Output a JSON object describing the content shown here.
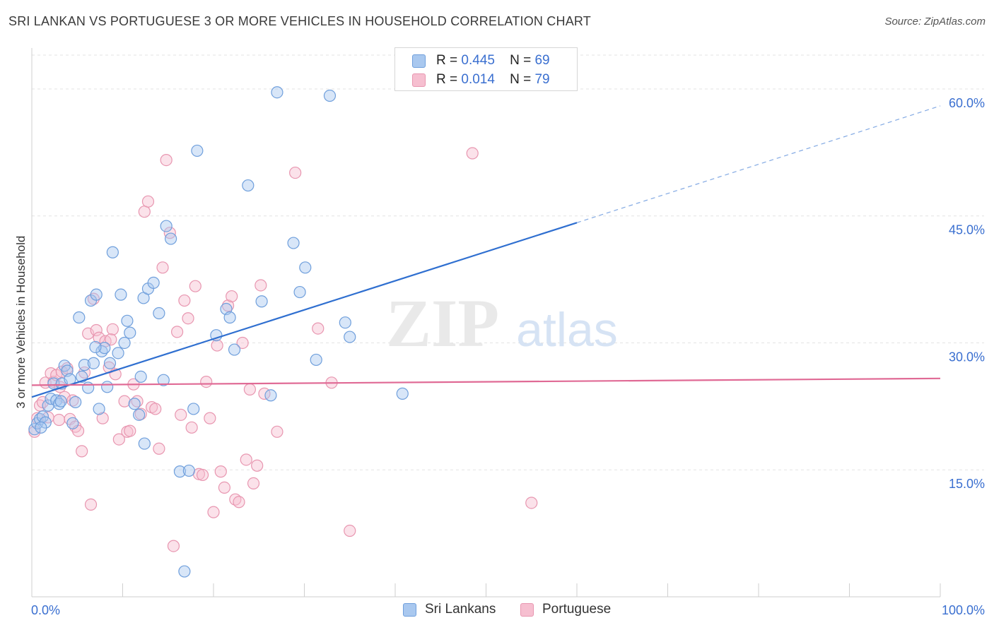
{
  "title": "SRI LANKAN VS PORTUGUESE 3 OR MORE VEHICLES IN HOUSEHOLD CORRELATION CHART",
  "source": "Source: ZipAtlas.com",
  "watermark": {
    "zip": "ZIP",
    "atlas": "atlas"
  },
  "legend": {
    "rows": [
      {
        "r_label": "R =",
        "r_value": "0.445",
        "n_label": "N =",
        "n_value": "69"
      },
      {
        "r_label": "R =",
        "r_value": "0.014",
        "n_label": "N =",
        "n_value": "79"
      }
    ]
  },
  "bottom_legend": {
    "series1": "Sri Lankans",
    "series2": "Portuguese"
  },
  "colors": {
    "blue_fill": "#a9c8ef",
    "blue_stroke": "#6f9fdc",
    "blue_line": "#2f6fd0",
    "pink_fill": "#f6bfd0",
    "pink_stroke": "#e896b0",
    "pink_line": "#e06a95",
    "axis_text": "#3a6fd0",
    "grid": "#e3e3e3"
  },
  "chart_data": {
    "type": "scatter",
    "title": "SRI LANKAN VS PORTUGUESE 3 OR MORE VEHICLES IN HOUSEHOLD CORRELATION CHART",
    "xlabel": "",
    "ylabel": "3 or more Vehicles in Household",
    "xlim": [
      0,
      100
    ],
    "ylim": [
      0,
      64
    ],
    "x_tick_labels": [
      "0.0%",
      "100.0%"
    ],
    "y_ticks": [
      15,
      30,
      45,
      60
    ],
    "y_tick_labels": [
      "15.0%",
      "30.0%",
      "45.0%",
      "60.0%"
    ],
    "grid": true,
    "legend_position": "top-center",
    "series": [
      {
        "name": "Sri Lankans",
        "R": 0.445,
        "N": 69,
        "trend": {
          "x": [
            0,
            60
          ],
          "y": [
            23.6,
            44.2
          ],
          "dashed_extension_to": [
            100,
            58.0
          ]
        },
        "points": [
          [
            0.3,
            19.8
          ],
          [
            0.6,
            20.5
          ],
          [
            0.9,
            21.0
          ],
          [
            1.2,
            21.3
          ],
          [
            1.5,
            20.6
          ],
          [
            1.8,
            22.6
          ],
          [
            2.1,
            23.4
          ],
          [
            2.4,
            25.2
          ],
          [
            2.7,
            23.2
          ],
          [
            3.0,
            22.8
          ],
          [
            3.3,
            25.2
          ],
          [
            3.6,
            27.3
          ],
          [
            3.9,
            26.7
          ],
          [
            4.2,
            25.7
          ],
          [
            4.5,
            20.5
          ],
          [
            4.8,
            23.0
          ],
          [
            5.2,
            33.0
          ],
          [
            5.5,
            26.0
          ],
          [
            5.8,
            27.4
          ],
          [
            6.2,
            24.7
          ],
          [
            6.5,
            35.0
          ],
          [
            6.8,
            27.6
          ],
          [
            7.1,
            35.7
          ],
          [
            7.4,
            22.2
          ],
          [
            7.7,
            29.0
          ],
          [
            8.0,
            29.4
          ],
          [
            8.3,
            24.8
          ],
          [
            8.6,
            27.6
          ],
          [
            8.9,
            40.7
          ],
          [
            9.5,
            28.8
          ],
          [
            9.8,
            35.7
          ],
          [
            10.2,
            30.0
          ],
          [
            10.5,
            32.6
          ],
          [
            10.8,
            31.2
          ],
          [
            11.3,
            22.8
          ],
          [
            11.8,
            21.5
          ],
          [
            12.0,
            26.0
          ],
          [
            12.3,
            35.3
          ],
          [
            12.8,
            36.4
          ],
          [
            13.4,
            37.1
          ],
          [
            14.0,
            33.5
          ],
          [
            14.8,
            43.8
          ],
          [
            15.3,
            42.3
          ],
          [
            16.3,
            14.8
          ],
          [
            16.8,
            3.0
          ],
          [
            17.3,
            14.9
          ],
          [
            17.8,
            22.2
          ],
          [
            18.2,
            52.7
          ],
          [
            20.3,
            30.9
          ],
          [
            21.4,
            34.0
          ],
          [
            21.8,
            33.0
          ],
          [
            22.3,
            29.2
          ],
          [
            23.8,
            48.6
          ],
          [
            25.3,
            34.9
          ],
          [
            26.3,
            23.8
          ],
          [
            27.0,
            59.6
          ],
          [
            28.8,
            41.8
          ],
          [
            29.5,
            36.0
          ],
          [
            30.1,
            38.9
          ],
          [
            31.3,
            28.0
          ],
          [
            32.8,
            59.2
          ],
          [
            34.5,
            32.4
          ],
          [
            35.0,
            30.7
          ],
          [
            40.8,
            24.0
          ],
          [
            1.0,
            20.0
          ],
          [
            7.0,
            29.5
          ],
          [
            14.5,
            25.6
          ],
          [
            12.4,
            18.1
          ],
          [
            3.2,
            23.1
          ]
        ]
      },
      {
        "name": "Portuguese",
        "R": 0.014,
        "N": 79,
        "trend": {
          "x": [
            0,
            100
          ],
          "y": [
            25.0,
            25.8
          ]
        },
        "points": [
          [
            0.3,
            19.5
          ],
          [
            0.6,
            21.1
          ],
          [
            0.9,
            22.6
          ],
          [
            1.2,
            23.0
          ],
          [
            1.5,
            25.3
          ],
          [
            1.8,
            21.2
          ],
          [
            2.1,
            26.4
          ],
          [
            2.4,
            25.4
          ],
          [
            2.7,
            26.2
          ],
          [
            3.0,
            20.9
          ],
          [
            3.3,
            26.6
          ],
          [
            3.6,
            23.6
          ],
          [
            3.9,
            27.0
          ],
          [
            4.2,
            21.0
          ],
          [
            4.5,
            23.2
          ],
          [
            4.8,
            20.1
          ],
          [
            5.1,
            19.6
          ],
          [
            5.5,
            17.2
          ],
          [
            5.8,
            26.5
          ],
          [
            6.2,
            31.1
          ],
          [
            6.5,
            10.9
          ],
          [
            6.8,
            35.2
          ],
          [
            7.1,
            31.5
          ],
          [
            7.4,
            30.6
          ],
          [
            7.8,
            21.1
          ],
          [
            8.1,
            30.2
          ],
          [
            8.5,
            27.1
          ],
          [
            8.9,
            31.6
          ],
          [
            9.2,
            26.3
          ],
          [
            9.6,
            18.6
          ],
          [
            10.2,
            23.1
          ],
          [
            10.5,
            19.5
          ],
          [
            10.8,
            19.6
          ],
          [
            11.2,
            25.1
          ],
          [
            11.6,
            23.1
          ],
          [
            12.0,
            21.6
          ],
          [
            12.4,
            45.5
          ],
          [
            12.8,
            46.7
          ],
          [
            13.2,
            22.4
          ],
          [
            13.6,
            22.2
          ],
          [
            14.0,
            17.5
          ],
          [
            14.4,
            38.9
          ],
          [
            14.8,
            51.6
          ],
          [
            15.2,
            43.0
          ],
          [
            15.6,
            6.0
          ],
          [
            16.0,
            31.3
          ],
          [
            16.4,
            21.5
          ],
          [
            16.8,
            35.0
          ],
          [
            17.2,
            32.9
          ],
          [
            17.6,
            20.0
          ],
          [
            18.0,
            36.7
          ],
          [
            18.4,
            14.5
          ],
          [
            18.8,
            14.4
          ],
          [
            19.2,
            25.4
          ],
          [
            19.6,
            21.1
          ],
          [
            20.0,
            10.0
          ],
          [
            20.4,
            29.7
          ],
          [
            20.8,
            14.8
          ],
          [
            21.2,
            12.9
          ],
          [
            21.6,
            34.4
          ],
          [
            22.0,
            35.5
          ],
          [
            22.4,
            11.5
          ],
          [
            22.8,
            11.2
          ],
          [
            23.2,
            30.0
          ],
          [
            23.6,
            16.2
          ],
          [
            24.0,
            24.5
          ],
          [
            24.4,
            13.4
          ],
          [
            24.8,
            15.5
          ],
          [
            25.2,
            36.8
          ],
          [
            25.6,
            24.0
          ],
          [
            27.0,
            19.5
          ],
          [
            29.0,
            50.1
          ],
          [
            31.5,
            31.7
          ],
          [
            33.0,
            25.3
          ],
          [
            35.0,
            7.8
          ],
          [
            48.5,
            52.4
          ],
          [
            55.0,
            11.1
          ],
          [
            3.1,
            24.8
          ],
          [
            8.7,
            30.4
          ]
        ]
      }
    ]
  }
}
